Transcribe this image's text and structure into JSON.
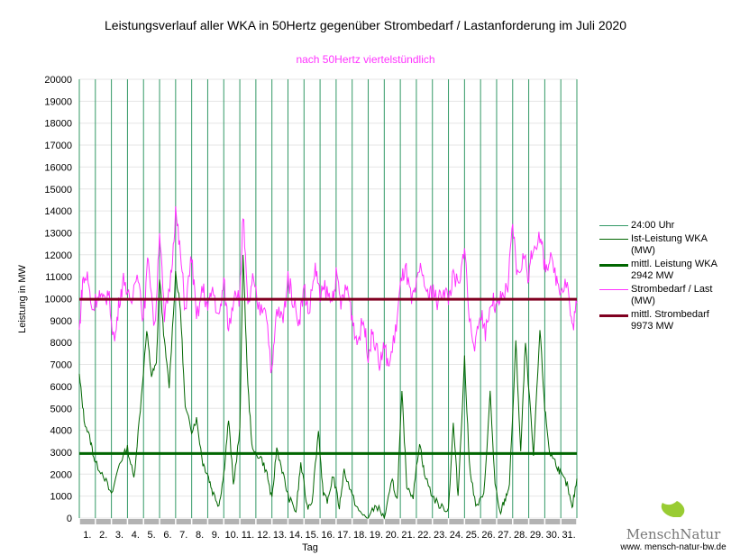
{
  "chart_data": {
    "type": "line",
    "title": "Leistungsverlauf aller WKA in 50Hertz gegenüber  Strombedarf / Lastanforderung im Juli 2020",
    "subtitle": "nach 50Hertz viertelstündlich",
    "xlabel": "Tag",
    "ylabel": "Leistung in MW",
    "ylim": [
      0,
      20000
    ],
    "xlim": [
      0,
      31
    ],
    "yticks": [
      "0",
      "1000",
      "2000",
      "3000",
      "4000",
      "5000",
      "6000",
      "7000",
      "8000",
      "9000",
      "10000",
      "11000",
      "12000",
      "13000",
      "14000",
      "15000",
      "16000",
      "17000",
      "18000",
      "19000",
      "20000"
    ],
    "xticks": [
      "1.",
      "2.",
      "3.",
      "4.",
      "5.",
      "6.",
      "7.",
      "8.",
      "9.",
      "10.",
      "11.",
      "12.",
      "13.",
      "14.",
      "15.",
      "16.",
      "17.",
      "18.",
      "19.",
      "20.",
      "21.",
      "22.",
      "23.",
      "24.",
      "25.",
      "26.",
      "27.",
      "28.",
      "29.",
      "30.",
      "31."
    ],
    "legend_position": "right",
    "legend": [
      {
        "label": "24:00 Uhr",
        "color": "#339966"
      },
      {
        "label": "Ist-Leistung WKA (MW)",
        "color": "#006600"
      },
      {
        "label": "mittl. Leistung WKA 2942 MW",
        "color": "#006600"
      },
      {
        "label": "Strombedarf / Last (MW)",
        "color": "#ff33ff"
      },
      {
        "label": "mittl. Strombedarf 9973 MW",
        "color": "#800020"
      }
    ],
    "series": [
      {
        "name": "Ist-Leistung WKA (MW)",
        "color": "#006600",
        "x": [
          0,
          0.3,
          0.7,
          1,
          1.5,
          2,
          2.5,
          3,
          3.4,
          3.8,
          4.2,
          4.5,
          4.8,
          5,
          5.3,
          5.6,
          6,
          6.3,
          6.6,
          7,
          7.3,
          7.7,
          8,
          8.3,
          8.7,
          9,
          9.3,
          9.6,
          10,
          10.2,
          10.5,
          10.8,
          11.3,
          11.7,
          12,
          12.3,
          12.7,
          13,
          13.5,
          13.8,
          14.2,
          14.5,
          14.9,
          15.2,
          15.5,
          15.8,
          16.2,
          16.5,
          17,
          17.5,
          18,
          18.5,
          19,
          19.5,
          19.8,
          20.1,
          20.4,
          20.8,
          21.2,
          21.5,
          22,
          22.5,
          23,
          23.3,
          23.6,
          24,
          24.3,
          24.7,
          25.2,
          25.6,
          25.9,
          26.2,
          26.5,
          26.8,
          27.2,
          27.5,
          27.8,
          28.3,
          28.7,
          29,
          29.3,
          29.7,
          30,
          30.4,
          30.7,
          31
        ],
        "values": [
          6500,
          4500,
          3500,
          2500,
          2000,
          1000,
          2500,
          3200,
          1800,
          5000,
          8500,
          6500,
          7000,
          11000,
          8000,
          6000,
          11200,
          9500,
          5000,
          4000,
          4500,
          2500,
          2000,
          1200,
          600,
          2000,
          4500,
          1500,
          4000,
          12000,
          6000,
          3000,
          2800,
          2000,
          800,
          3200,
          2000,
          1000,
          300,
          2500,
          500,
          800,
          4000,
          1000,
          800,
          2000,
          500,
          2200,
          1000,
          200,
          0,
          600,
          0,
          1700,
          800,
          5700,
          1500,
          1000,
          3500,
          2000,
          1000,
          500,
          400,
          4300,
          1000,
          7300,
          2500,
          500,
          1000,
          5700,
          1500,
          200,
          800,
          1500,
          8000,
          3000,
          8000,
          2800,
          8600,
          5000,
          3000,
          2500,
          2000,
          1500,
          400,
          1800
        ]
      },
      {
        "name": "Strombedarf / Last (MW)",
        "color": "#ff33ff",
        "x": [
          0,
          0.2,
          0.5,
          0.8,
          1.2,
          1.5,
          1.8,
          2.2,
          2.5,
          2.8,
          3.2,
          3.6,
          4,
          4.3,
          4.7,
          5,
          5.3,
          5.7,
          6,
          6.3,
          6.6,
          7,
          7.3,
          7.7,
          8,
          8.3,
          8.7,
          9,
          9.3,
          9.7,
          10,
          10.2,
          10.5,
          10.8,
          11.2,
          11.6,
          12,
          12.3,
          12.7,
          13,
          13.3,
          13.7,
          14,
          14.3,
          14.7,
          15,
          15.3,
          15.7,
          16,
          16.3,
          16.7,
          17,
          17.3,
          17.7,
          18,
          18.3,
          18.7,
          19,
          19.3,
          19.7,
          20,
          20.3,
          20.7,
          21,
          21.3,
          21.7,
          22,
          22.3,
          22.7,
          23,
          23.3,
          23.7,
          24,
          24.3,
          24.7,
          25,
          25.3,
          25.7,
          26,
          26.3,
          26.7,
          27,
          27.3,
          27.7,
          28,
          28.3,
          28.7,
          29,
          29.3,
          29.7,
          30,
          30.4,
          30.7,
          31
        ],
        "values": [
          8500,
          10800,
          11000,
          9500,
          10300,
          9800,
          10300,
          8000,
          10000,
          11000,
          9500,
          11500,
          9000,
          12000,
          8500,
          13200,
          9000,
          11000,
          14000,
          12000,
          9500,
          12000,
          9000,
          10500,
          9500,
          10500,
          9000,
          10800,
          8600,
          10500,
          10000,
          13900,
          9500,
          10800,
          9500,
          9800,
          6500,
          9500,
          9000,
          11000,
          10000,
          9000,
          10500,
          9300,
          11500,
          10000,
          10500,
          9800,
          11000,
          9800,
          10500,
          9200,
          8000,
          9000,
          7500,
          8500,
          7000,
          7800,
          6900,
          8500,
          10500,
          11500,
          9800,
          10500,
          11500,
          10000,
          10500,
          9800,
          10500,
          10000,
          11000,
          10500,
          12600,
          9000,
          7800,
          9500,
          8500,
          10000,
          9500,
          10000,
          10500,
          13300,
          11000,
          12000,
          11000,
          12500,
          12800,
          11500,
          11800,
          11000,
          10500,
          10800,
          8600,
          9800
        ]
      },
      {
        "name": "mittl. Leistung WKA",
        "color": "#006600",
        "constant": 2942
      },
      {
        "name": "mittl. Strombedarf",
        "color": "#800020",
        "constant": 9973
      }
    ]
  },
  "logo": {
    "name": "MenschNatur",
    "url": "www. mensch-natur-bw.de"
  }
}
